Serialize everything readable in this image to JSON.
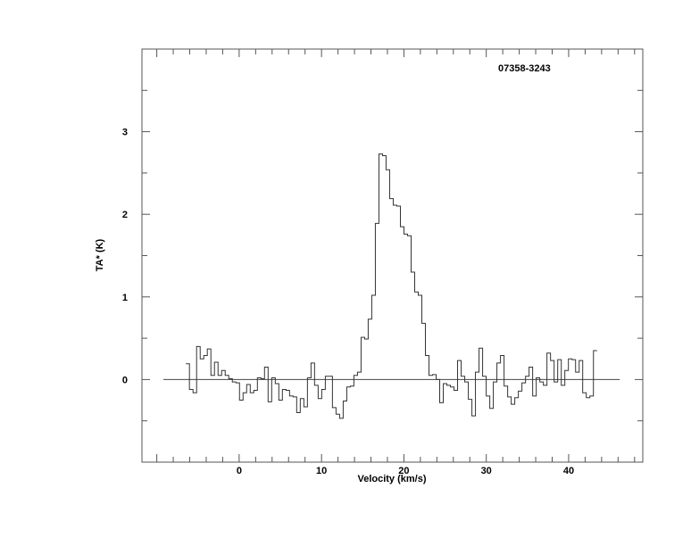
{
  "chart_data": {
    "type": "line",
    "style": "histogram",
    "title": "07358-3243",
    "xlabel": "Velocity (km/s)",
    "ylabel": "TA* (K)",
    "xlim": [
      -11.8,
      49
    ],
    "ylim": [
      -1,
      4
    ],
    "x_tick_labels": [
      "0",
      "10",
      "20",
      "30",
      "40"
    ],
    "x_tick_values": [
      0,
      10,
      20,
      30,
      40
    ],
    "x_minor_step": 2,
    "y_tick_labels": [
      "0",
      "1",
      "2",
      "3"
    ],
    "y_tick_values": [
      0,
      1,
      2,
      3
    ],
    "y_minor_step": 0.5,
    "grid": false,
    "baseline": {
      "y": 0,
      "x_range": [
        -9.2,
        46.2
      ]
    },
    "colors": {
      "line": "#333333",
      "axes": "#555555"
    },
    "x": [
      -6.25,
      -5.82,
      -5.38,
      -4.95,
      -4.51,
      -4.08,
      -3.65,
      -3.21,
      -2.78,
      -2.34,
      -1.91,
      -1.48,
      -1.04,
      -0.61,
      -0.17,
      0.26,
      0.69,
      1.13,
      1.56,
      2.0,
      2.43,
      2.86,
      3.3,
      3.73,
      4.17,
      4.6,
      5.03,
      5.47,
      5.9,
      6.34,
      6.77,
      7.2,
      7.64,
      8.07,
      8.51,
      8.94,
      9.37,
      9.81,
      10.24,
      10.68,
      11.11,
      11.54,
      11.98,
      12.41,
      12.85,
      13.28,
      13.71,
      14.15,
      14.58,
      15.02,
      15.45,
      15.88,
      16.32,
      16.75,
      17.19,
      17.62,
      18.05,
      18.49,
      18.92,
      19.36,
      19.79,
      20.22,
      20.66,
      21.09,
      21.53,
      21.96,
      22.39,
      22.83,
      23.26,
      23.7,
      24.13,
      24.56,
      25.0,
      25.43,
      25.87,
      26.3,
      26.73,
      27.17,
      27.6,
      28.04,
      28.47,
      28.9,
      29.34,
      29.77,
      30.21,
      30.64,
      31.07,
      31.51,
      31.94,
      32.38,
      32.81,
      33.24,
      33.68,
      34.11,
      34.55,
      34.98,
      35.41,
      35.85,
      36.28,
      36.72,
      37.15,
      37.58,
      38.02,
      38.45,
      38.89,
      39.32,
      39.75,
      40.19,
      40.62,
      41.06,
      41.49,
      41.92,
      42.36,
      42.79,
      43.23
    ],
    "y": [
      0.19,
      -0.12,
      -0.16,
      0.4,
      0.25,
      0.29,
      0.37,
      0.05,
      0.21,
      0.05,
      0.11,
      0.05,
      0.01,
      -0.03,
      -0.04,
      -0.25,
      -0.16,
      -0.06,
      -0.16,
      -0.13,
      0.02,
      0.01,
      0.15,
      -0.27,
      0.02,
      -0.05,
      -0.25,
      -0.12,
      -0.13,
      -0.2,
      -0.21,
      -0.4,
      -0.23,
      -0.33,
      0.02,
      0.2,
      -0.07,
      -0.23,
      -0.12,
      0.04,
      0.04,
      -0.34,
      -0.42,
      -0.47,
      -0.26,
      -0.09,
      -0.08,
      0.05,
      0.09,
      0.51,
      0.49,
      0.73,
      1.02,
      1.89,
      2.73,
      2.71,
      2.54,
      2.19,
      2.11,
      2.1,
      1.85,
      1.76,
      1.74,
      1.3,
      1.06,
      1.02,
      0.68,
      0.29,
      0.05,
      0.06,
      0.0,
      -0.28,
      -0.05,
      -0.07,
      -0.09,
      -0.13,
      0.23,
      0.04,
      -0.03,
      -0.24,
      -0.44,
      0.09,
      0.38,
      0.04,
      -0.2,
      -0.35,
      -0.03,
      0.2,
      0.29,
      -0.08,
      -0.21,
      -0.3,
      -0.22,
      -0.14,
      -0.04,
      0.04,
      0.15,
      -0.2,
      0.02,
      -0.03,
      -0.07,
      0.32,
      0.23,
      -0.03,
      0.24,
      -0.07,
      0.11,
      0.25,
      0.24,
      0.09,
      0.23,
      -0.16,
      -0.22,
      -0.2,
      0.35
    ]
  }
}
